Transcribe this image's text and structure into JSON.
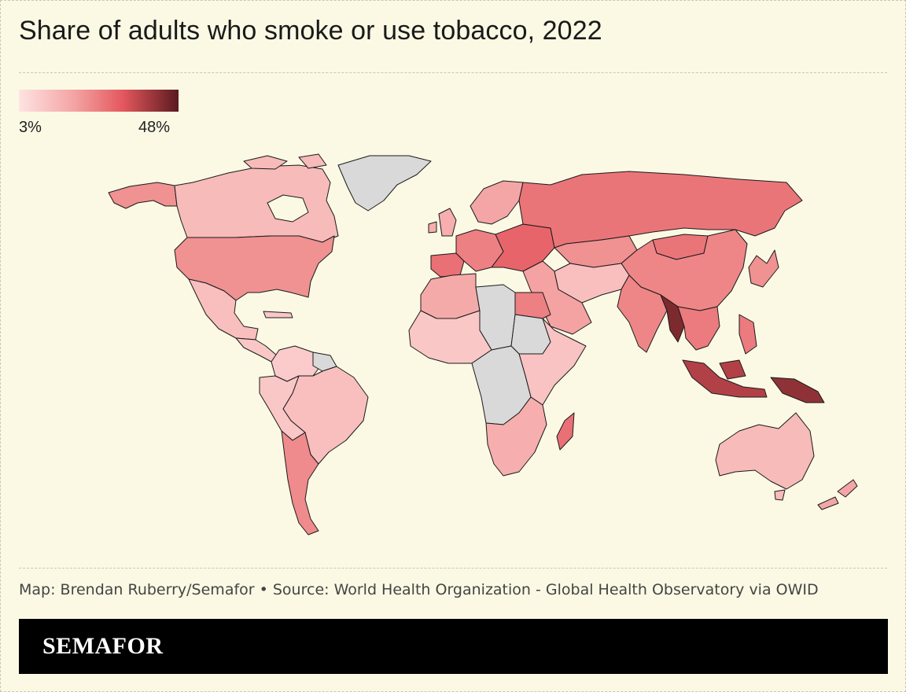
{
  "title": "Share of adults who smoke or use tobacco, 2022",
  "legend": {
    "min_label": "3%",
    "max_label": "48%",
    "min_value": 3,
    "max_value": 48,
    "colors": [
      "#fde4e2",
      "#f4a3a3",
      "#e4585e",
      "#5a1a1f"
    ]
  },
  "no_data_color": "#d9d9d9",
  "credit": "Map: Brendan Ruberry/Semafor • Source: World Health Organization - Global Health Observatory via OWID",
  "brand": "SEMAFOR",
  "regions": [
    {
      "name": "canada",
      "value": 13
    },
    {
      "name": "alaska",
      "value": 22
    },
    {
      "name": "greenland",
      "value": null
    },
    {
      "name": "usa",
      "value": 22
    },
    {
      "name": "mexico",
      "value": 12
    },
    {
      "name": "central-america",
      "value": 10
    },
    {
      "name": "colombia-venezuela",
      "value": 9
    },
    {
      "name": "guianas",
      "value": null
    },
    {
      "name": "peru-ecuador-bolivia",
      "value": 10
    },
    {
      "name": "brazil",
      "value": 12
    },
    {
      "name": "argentina-chile",
      "value": 23
    },
    {
      "name": "uk-ireland",
      "value": 16
    },
    {
      "name": "iberia",
      "value": 28
    },
    {
      "name": "western-europe",
      "value": 25
    },
    {
      "name": "scandinavia",
      "value": 18
    },
    {
      "name": "eastern-europe",
      "value": 30
    },
    {
      "name": "russia",
      "value": 27
    },
    {
      "name": "kazakhstan",
      "value": 22
    },
    {
      "name": "mongolia",
      "value": 27
    },
    {
      "name": "china",
      "value": 24
    },
    {
      "name": "middle-east",
      "value": 19
    },
    {
      "name": "iran-central-asia",
      "value": 12
    },
    {
      "name": "south-asia",
      "value": 24
    },
    {
      "name": "myanmar-bangladesh",
      "value": 44
    },
    {
      "name": "southeast-asia",
      "value": 26
    },
    {
      "name": "indonesia",
      "value": 38
    },
    {
      "name": "papua-new-guinea",
      "value": 42
    },
    {
      "name": "japan-korea",
      "value": 22
    },
    {
      "name": "north-africa-west",
      "value": 17
    },
    {
      "name": "libya-chad",
      "value": null
    },
    {
      "name": "egypt",
      "value": 25
    },
    {
      "name": "west-africa",
      "value": 10
    },
    {
      "name": "sudan",
      "value": null
    },
    {
      "name": "east-africa",
      "value": 11
    },
    {
      "name": "central-africa",
      "value": null
    },
    {
      "name": "southern-africa",
      "value": 16
    },
    {
      "name": "madagascar",
      "value": 28
    },
    {
      "name": "australia",
      "value": 13
    },
    {
      "name": "new-zealand",
      "value": 18
    }
  ]
}
